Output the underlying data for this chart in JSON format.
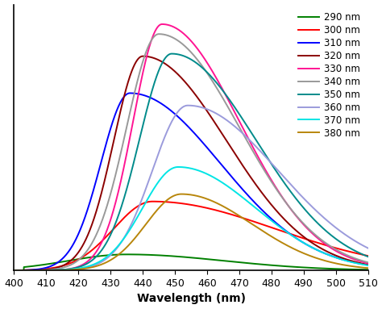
{
  "title": "",
  "xlabel": "Wavelength (nm)",
  "ylabel": "",
  "xlim": [
    400,
    510
  ],
  "ylim": [
    0,
    1.08
  ],
  "x_ticks": [
    400,
    410,
    420,
    430,
    440,
    450,
    460,
    470,
    480,
    490,
    500,
    510
  ],
  "series": [
    {
      "label": "290 nm",
      "color": "#008000",
      "peak": 435,
      "amplitude": 0.065,
      "sigma_l": 18,
      "sigma_r": 30
    },
    {
      "label": "300 nm",
      "color": "#ff0000",
      "peak": 443,
      "amplitude": 0.28,
      "sigma_l": 12,
      "sigma_r": 38
    },
    {
      "label": "310 nm",
      "color": "#0000ff",
      "peak": 436,
      "amplitude": 0.72,
      "sigma_l": 9,
      "sigma_r": 28
    },
    {
      "label": "320 nm",
      "color": "#8b0000",
      "peak": 440,
      "amplitude": 0.87,
      "sigma_l": 9,
      "sigma_r": 26
    },
    {
      "label": "330 nm",
      "color": "#ff1493",
      "peak": 446,
      "amplitude": 1.0,
      "sigma_l": 9,
      "sigma_r": 24
    },
    {
      "label": "340 nm",
      "color": "#999999",
      "peak": 445,
      "amplitude": 0.96,
      "sigma_l": 10,
      "sigma_r": 25
    },
    {
      "label": "350 nm",
      "color": "#008b8b",
      "peak": 449,
      "amplitude": 0.88,
      "sigma_l": 10,
      "sigma_r": 26
    },
    {
      "label": "360 nm",
      "color": "#9b9bdc",
      "peak": 454,
      "amplitude": 0.67,
      "sigma_l": 11,
      "sigma_r": 28
    },
    {
      "label": "370 nm",
      "color": "#00e5e5",
      "peak": 451,
      "amplitude": 0.42,
      "sigma_l": 11,
      "sigma_r": 24
    },
    {
      "label": "380 nm",
      "color": "#b8860b",
      "peak": 452,
      "amplitude": 0.31,
      "sigma_l": 11,
      "sigma_r": 22
    }
  ],
  "background_color": "#ffffff",
  "legend_fontsize": 8.5,
  "xlabel_fontsize": 10,
  "tick_fontsize": 9
}
